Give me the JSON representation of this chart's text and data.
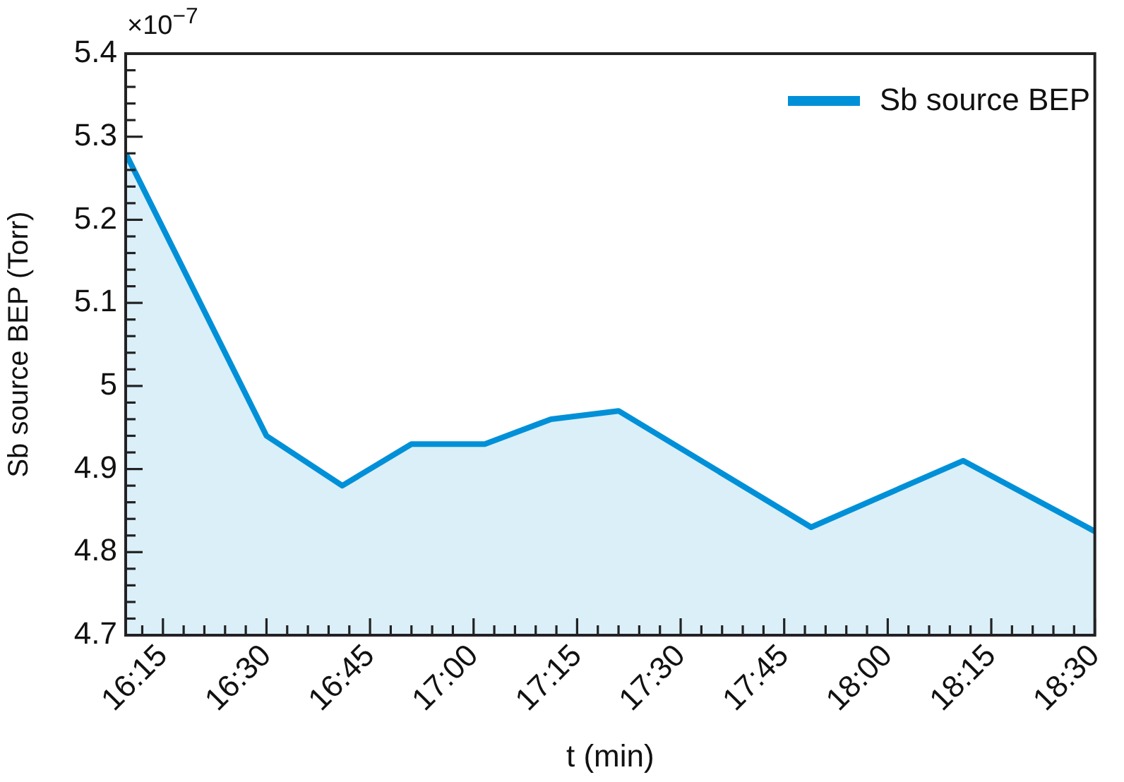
{
  "chart_data": {
    "type": "area",
    "ylabel": "Sb source BEP (Torr)",
    "xlabel": "t (min)",
    "annotations": [
      "×10$^{−7}$"
    ],
    "x": [
      16.16,
      16.5,
      16.683,
      16.85,
      17.027,
      17.187,
      17.35,
      17.815,
      18.182,
      18.5
    ],
    "series": [
      {
        "name": "Sb source BEP",
        "color": "#0090d8",
        "values": [
          5.28,
          4.94,
          4.88,
          4.93,
          4.93,
          4.96,
          4.97,
          4.83,
          4.91,
          4.825
        ]
      }
    ],
    "xlim": [
      16.16,
      18.5
    ],
    "xticks": [
      {
        "value": 16.2,
        "label": null
      },
      {
        "value": 16.25,
        "label": "16:15"
      },
      {
        "value": 16.3,
        "label": null
      },
      {
        "value": 16.35,
        "label": null
      },
      {
        "value": 16.4,
        "label": null
      },
      {
        "value": 16.45,
        "label": null
      },
      {
        "value": 16.5,
        "label": "16:30"
      },
      {
        "value": 16.55,
        "label": null
      },
      {
        "value": 16.6,
        "label": null
      },
      {
        "value": 16.65,
        "label": null
      },
      {
        "value": 16.7,
        "label": null
      },
      {
        "value": 16.75,
        "label": "16:45"
      },
      {
        "value": 16.8,
        "label": null
      },
      {
        "value": 16.85,
        "label": null
      },
      {
        "value": 16.9,
        "label": null
      },
      {
        "value": 16.95,
        "label": null
      },
      {
        "value": 17,
        "label": "17:00"
      },
      {
        "value": 17.05,
        "label": null
      },
      {
        "value": 17.1,
        "label": null
      },
      {
        "value": 17.15,
        "label": null
      },
      {
        "value": 17.2,
        "label": null
      },
      {
        "value": 17.25,
        "label": "17:15"
      },
      {
        "value": 17.3,
        "label": null
      },
      {
        "value": 17.35,
        "label": null
      },
      {
        "value": 17.4,
        "label": null
      },
      {
        "value": 17.45,
        "label": null
      },
      {
        "value": 17.5,
        "label": "17:30"
      },
      {
        "value": 17.55,
        "label": null
      },
      {
        "value": 17.6,
        "label": null
      },
      {
        "value": 17.65,
        "label": null
      },
      {
        "value": 17.7,
        "label": null
      },
      {
        "value": 17.75,
        "label": "17:45"
      },
      {
        "value": 17.8,
        "label": null
      },
      {
        "value": 17.85,
        "label": null
      },
      {
        "value": 17.9,
        "label": null
      },
      {
        "value": 17.95,
        "label": null
      },
      {
        "value": 18,
        "label": "18:00"
      },
      {
        "value": 18.05,
        "label": null
      },
      {
        "value": 18.1,
        "label": null
      },
      {
        "value": 18.15,
        "label": null
      },
      {
        "value": 18.2,
        "label": null
      },
      {
        "value": 18.25,
        "label": "18:15"
      },
      {
        "value": 18.3,
        "label": null
      },
      {
        "value": 18.35,
        "label": null
      },
      {
        "value": 18.4,
        "label": null
      },
      {
        "value": 18.45,
        "label": null
      },
      {
        "value": 18.5,
        "label": "18:30"
      }
    ],
    "ylim": [
      4.7,
      5.4
    ],
    "yticks": [
      {
        "value": 4.7,
        "label": "4.7"
      },
      {
        "value": 4.72,
        "label": null
      },
      {
        "value": 4.74,
        "label": null
      },
      {
        "value": 4.76,
        "label": null
      },
      {
        "value": 4.78,
        "label": null
      },
      {
        "value": 4.8,
        "label": "4.8"
      },
      {
        "value": 4.82,
        "label": null
      },
      {
        "value": 4.84,
        "label": null
      },
      {
        "value": 4.86,
        "label": null
      },
      {
        "value": 4.88,
        "label": null
      },
      {
        "value": 4.9,
        "label": "4.9"
      },
      {
        "value": 4.92,
        "label": null
      },
      {
        "value": 4.94,
        "label": null
      },
      {
        "value": 4.96,
        "label": null
      },
      {
        "value": 4.98,
        "label": null
      },
      {
        "value": 5,
        "label": "5"
      },
      {
        "value": 5.02,
        "label": null
      },
      {
        "value": 5.04,
        "label": null
      },
      {
        "value": 5.06,
        "label": null
      },
      {
        "value": 5.08,
        "label": null
      },
      {
        "value": 5.1,
        "label": "5.1"
      },
      {
        "value": 5.12,
        "label": null
      },
      {
        "value": 5.14,
        "label": null
      },
      {
        "value": 5.16,
        "label": null
      },
      {
        "value": 5.18,
        "label": null
      },
      {
        "value": 5.2,
        "label": "5.2"
      },
      {
        "value": 5.22,
        "label": null
      },
      {
        "value": 5.24,
        "label": null
      },
      {
        "value": 5.26,
        "label": null
      },
      {
        "value": 5.28,
        "label": null
      },
      {
        "value": 5.3,
        "label": "5.3"
      },
      {
        "value": 5.32,
        "label": null
      },
      {
        "value": 5.34,
        "label": null
      },
      {
        "value": 5.36,
        "label": null
      },
      {
        "value": 5.38,
        "label": null
      },
      {
        "value": 5.4,
        "label": "5.4"
      }
    ],
    "grid": false,
    "legend": "top right",
    "marker": "none",
    "line_style": "solid"
  }
}
